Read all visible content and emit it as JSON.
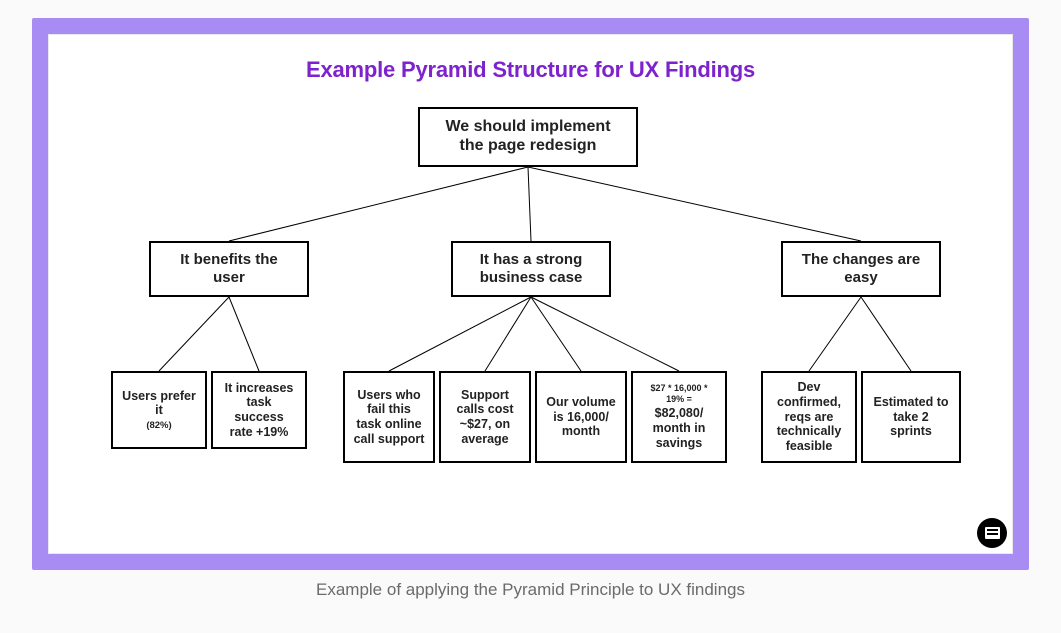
{
  "meta": {
    "type": "tree",
    "background_color": "#fafafa",
    "frame_color": "#a98bf4",
    "slide_background": "#ffffff",
    "box_border_color": "#000000",
    "box_border_width": 2,
    "edge_color": "#000000",
    "edge_width": 1,
    "title_color": "#7e22ce",
    "title_fontsize": 22,
    "title_fontweight": 800,
    "caption_color": "#6b6b6b",
    "caption_fontsize": 17,
    "leaf_fontsize": 12.5,
    "mid_fontsize": 15,
    "root_fontsize": 16
  },
  "title": "Example Pyramid Structure for UX Findings",
  "caption": "Example of applying the Pyramid Principle to UX findings",
  "tree": {
    "root": {
      "text": "We should implement\nthe page redesign",
      "children": [
        "b1",
        "b2",
        "b3"
      ]
    },
    "b1": {
      "text": "It benefits the\nuser",
      "children": [
        "c1",
        "c2"
      ]
    },
    "b2": {
      "text": "It has a strong\nbusiness case",
      "children": [
        "c3",
        "c4",
        "c5",
        "c6"
      ]
    },
    "b3": {
      "text": "The changes are\neasy",
      "children": [
        "c7",
        "c8"
      ]
    },
    "c1": {
      "text": "Users prefer it",
      "sub": "(82%)"
    },
    "c2": {
      "text": "It increases\ntask success\nrate +19%"
    },
    "c3": {
      "text": "Users who\nfail this\ntask online\ncall support"
    },
    "c4": {
      "text": "Support\ncalls cost\n~$27, on\naverage"
    },
    "c5": {
      "text": "Our volume\nis 16,000/\nmonth"
    },
    "c6": {
      "text_top": "$27 * 16,000 *\n19% =",
      "text_big": "$82,080/\nmonth in\nsavings"
    },
    "c7": {
      "text": "Dev\nconfirmed,\nreqs are\ntechnically\nfeasible"
    },
    "c8": {
      "text": "Estimated to\ntake 2 sprints"
    }
  }
}
